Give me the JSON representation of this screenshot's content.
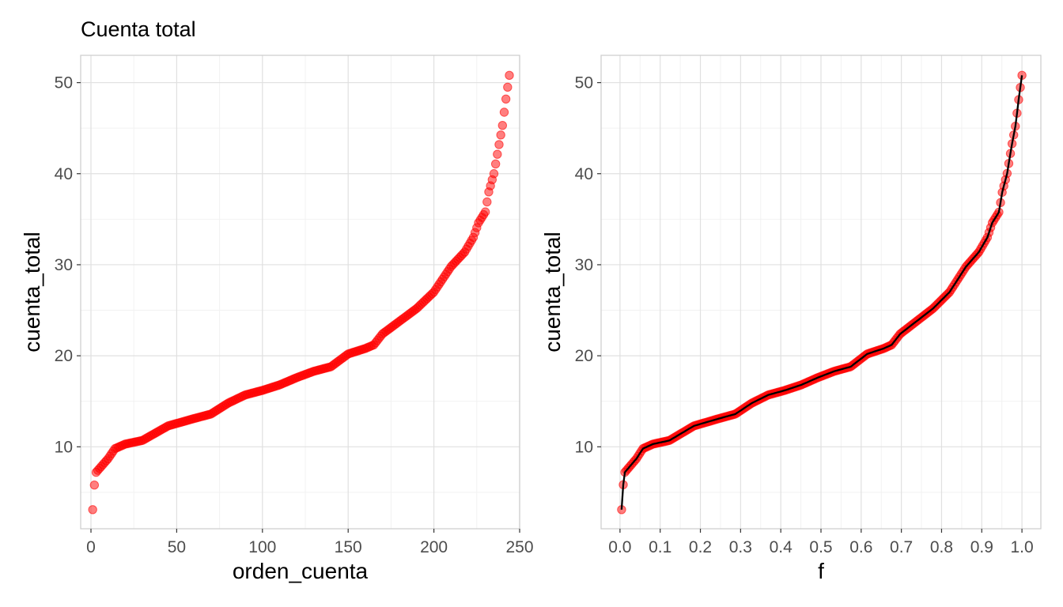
{
  "title": "Cuenta total",
  "colors": {
    "points": "#ff0000",
    "line": "#000000",
    "grid_major": "#e0e0e0",
    "grid_minor": "#f2f2f2",
    "panel_border": "#cccccc"
  },
  "chart_data": [
    {
      "type": "scatter",
      "xlabel": "orden_cuenta",
      "ylabel": "cuenta_total",
      "xlim": [
        -6,
        250
      ],
      "ylim": [
        1,
        53
      ],
      "x_ticks": [
        0,
        50,
        100,
        150,
        200,
        250
      ],
      "x_tick_labels": [
        "0",
        "50",
        "100",
        "150",
        "200",
        "250"
      ],
      "y_ticks": [
        10,
        20,
        30,
        40,
        50
      ],
      "y_tick_labels": [
        "10",
        "20",
        "30",
        "40",
        "50"
      ],
      "grid": true,
      "series": [
        {
          "points_curve": [
            [
              1,
              3.1
            ],
            [
              2,
              5.8
            ],
            [
              3,
              7.2
            ],
            [
              10,
              8.7
            ],
            [
              14,
              9.8
            ],
            [
              20,
              10.3
            ],
            [
              30,
              10.7
            ],
            [
              45,
              12.3
            ],
            [
              60,
              13.1
            ],
            [
              70,
              13.6
            ],
            [
              80,
              14.8
            ],
            [
              90,
              15.7
            ],
            [
              100,
              16.2
            ],
            [
              110,
              16.8
            ],
            [
              120,
              17.6
            ],
            [
              130,
              18.3
            ],
            [
              140,
              18.8
            ],
            [
              150,
              20.2
            ],
            [
              160,
              20.8
            ],
            [
              165,
              21.2
            ],
            [
              170,
              22.4
            ],
            [
              180,
              23.8
            ],
            [
              190,
              25.2
            ],
            [
              200,
              27.0
            ],
            [
              210,
              29.8
            ],
            [
              218,
              31.4
            ],
            [
              223,
              33.0
            ],
            [
              226,
              34.6
            ],
            [
              230,
              35.8
            ],
            [
              232,
              38.0
            ],
            [
              235,
              40.0
            ],
            [
              238,
              43.2
            ],
            [
              240,
              45.3
            ],
            [
              242,
              48.2
            ],
            [
              244,
              50.8
            ]
          ]
        }
      ]
    },
    {
      "type": "scatter",
      "xlabel": "f",
      "ylabel": "cuenta_total",
      "xlim": [
        -0.047,
        1.047
      ],
      "ylim": [
        1,
        53
      ],
      "x_ticks": [
        0.0,
        0.1,
        0.2,
        0.3,
        0.4,
        0.5,
        0.6,
        0.7,
        0.8,
        0.9,
        1.0
      ],
      "x_tick_labels": [
        "0.0",
        "0.1",
        "0.2",
        "0.3",
        "0.4",
        "0.5",
        "0.6",
        "0.7",
        "0.8",
        "0.9",
        "1.0"
      ],
      "y_ticks": [
        10,
        20,
        30,
        40,
        50
      ],
      "y_tick_labels": [
        "10",
        "20",
        "30",
        "40",
        "50"
      ],
      "grid": true,
      "series": [
        {
          "points_curve": [
            [
              0.004,
              3.1
            ],
            [
              0.008,
              5.8
            ],
            [
              0.012,
              7.2
            ],
            [
              0.041,
              8.7
            ],
            [
              0.057,
              9.8
            ],
            [
              0.082,
              10.3
            ],
            [
              0.123,
              10.7
            ],
            [
              0.184,
              12.3
            ],
            [
              0.246,
              13.1
            ],
            [
              0.287,
              13.6
            ],
            [
              0.328,
              14.8
            ],
            [
              0.369,
              15.7
            ],
            [
              0.41,
              16.2
            ],
            [
              0.451,
              16.8
            ],
            [
              0.492,
              17.6
            ],
            [
              0.533,
              18.3
            ],
            [
              0.574,
              18.8
            ],
            [
              0.615,
              20.2
            ],
            [
              0.656,
              20.8
            ],
            [
              0.676,
              21.2
            ],
            [
              0.697,
              22.4
            ],
            [
              0.738,
              23.8
            ],
            [
              0.779,
              25.2
            ],
            [
              0.82,
              27.0
            ],
            [
              0.861,
              29.8
            ],
            [
              0.893,
              31.4
            ],
            [
              0.914,
              33.0
            ],
            [
              0.926,
              34.6
            ],
            [
              0.943,
              35.8
            ],
            [
              0.951,
              38.0
            ],
            [
              0.963,
              40.0
            ],
            [
              0.975,
              43.2
            ],
            [
              0.984,
              45.3
            ],
            [
              0.992,
              48.2
            ],
            [
              1.0,
              50.8
            ]
          ]
        },
        {
          "type": "line",
          "values": "same as points"
        }
      ]
    }
  ]
}
